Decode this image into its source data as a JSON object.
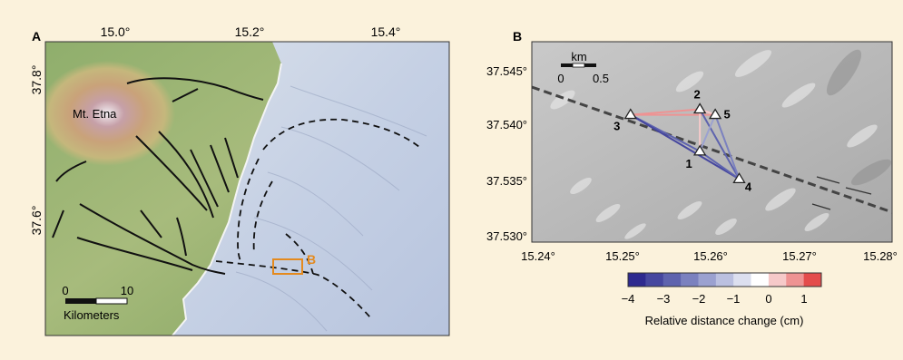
{
  "panel_a": {
    "label": "A",
    "lon_ticks": [
      "15.0°",
      "15.2°",
      "15.4°"
    ],
    "lat_ticks": [
      "37.8°",
      "37.6°"
    ],
    "place_label": "Mt. Etna",
    "box_label": "B",
    "scale": {
      "start": "0",
      "end": "10",
      "unit": "Kilometers"
    },
    "colors": {
      "box": "#e48a1e",
      "fault": "#111111"
    }
  },
  "panel_b": {
    "label": "B",
    "lat_ticks": [
      "37.545°",
      "37.540°",
      "37.535°",
      "37.530°"
    ],
    "lon_ticks": [
      "15.24°",
      "15.25°",
      "15.26°",
      "15.27°",
      "15.28°"
    ],
    "scale": {
      "unit": "km",
      "start": "0",
      "end": "0.5"
    },
    "stations": [
      {
        "id": "1",
        "lon": 15.2589,
        "lat": 37.5378
      },
      {
        "id": "2",
        "lon": 15.2589,
        "lat": 37.5416
      },
      {
        "id": "3",
        "lon": 15.2508,
        "lat": 37.5411
      },
      {
        "id": "4",
        "lon": 15.2635,
        "lat": 37.5353
      },
      {
        "id": "5",
        "lon": 15.2607,
        "lat": 37.5411
      }
    ],
    "baselines": [
      {
        "from": "3",
        "to": "2",
        "value": 0.6
      },
      {
        "from": "3",
        "to": "5",
        "value": 0.7
      },
      {
        "from": "2",
        "to": "5",
        "value": 0.3
      },
      {
        "from": "2",
        "to": "1",
        "value": 0.4
      },
      {
        "from": "3",
        "to": "1",
        "value": -3.2
      },
      {
        "from": "3",
        "to": "4",
        "value": -3.6
      },
      {
        "from": "1",
        "to": "4",
        "value": -3.4
      },
      {
        "from": "2",
        "to": "4",
        "value": -3.0
      },
      {
        "from": "5",
        "to": "4",
        "value": -2.8
      },
      {
        "from": "1",
        "to": "5",
        "value": -2.0
      }
    ]
  },
  "colorbar": {
    "ticks": [
      "−4",
      "−3",
      "−2",
      "−1",
      "0",
      "1"
    ],
    "label": "Relative distance change (cm)",
    "colors": [
      "#2e2a8f",
      "#46479f",
      "#5e63ae",
      "#7b81bf",
      "#9ba1d0",
      "#bbc0e0",
      "#dcdfef",
      "#ffffff",
      "#f6c9c9",
      "#ee9393",
      "#e44c4c"
    ]
  }
}
